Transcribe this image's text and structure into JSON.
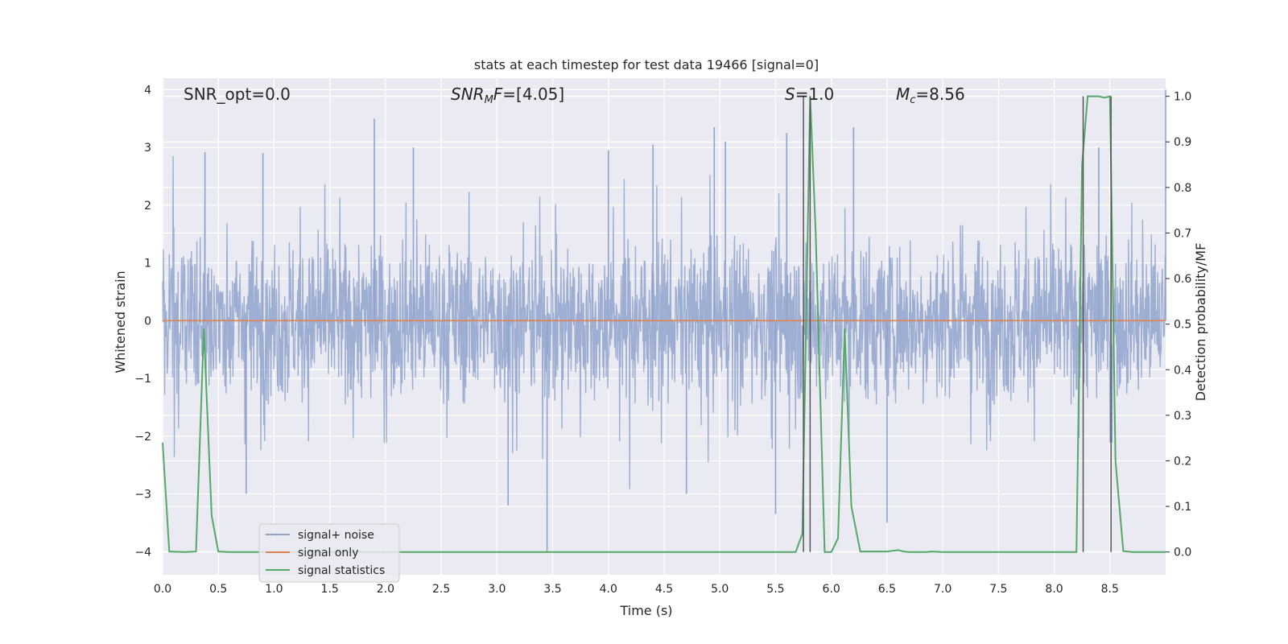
{
  "chart_data": {
    "type": "line",
    "title": "stats at each timestep for test data 19466 [signal=0]",
    "xlabel": "Time (s)",
    "ylabel_left": "Whitened strain",
    "ylabel_right": "Detection probability/MF",
    "xlim": [
      0.0,
      9.0
    ],
    "ylim_left": [
      -4.4,
      4.2
    ],
    "ylim_right": [
      -0.05,
      1.04
    ],
    "x_ticks": [
      "0.0",
      "0.5",
      "1.0",
      "1.5",
      "2.0",
      "2.5",
      "3.0",
      "3.5",
      "4.0",
      "4.5",
      "5.0",
      "5.5",
      "6.0",
      "6.5",
      "7.0",
      "7.5",
      "8.0",
      "8.5"
    ],
    "y_left_ticks": [
      "−4",
      "−3",
      "−2",
      "−1",
      "0",
      "1",
      "2",
      "3",
      "4"
    ],
    "y_right_ticks": [
      "0.0",
      "0.1",
      "0.2",
      "0.3",
      "0.4",
      "0.5",
      "0.6",
      "0.7",
      "0.8",
      "0.9",
      "1.0"
    ],
    "grid": true,
    "legend_position": "lower-left",
    "annotations": {
      "snr_opt": "SNR_opt=0.0",
      "snr_mf_base": "SNR",
      "snr_mf_sub": "M",
      "snr_mf_rest": "F=[4.05]",
      "s_var": "S",
      "s_rest": "=1.0",
      "mc_var": "M",
      "mc_sub": "c",
      "mc_rest": "=8.56"
    },
    "series": [
      {
        "name": "signal+ noise",
        "color": "#8fa3cc",
        "noise_envelope": {
          "typical_range": [
            -1.6,
            1.5
          ],
          "extreme_peaks": [
            {
              "x": 0.38,
              "y": 2.92
            },
            {
              "x": 0.9,
              "y": 2.9
            },
            {
              "x": 1.9,
              "y": 3.5
            },
            {
              "x": 2.25,
              "y": 3.0
            },
            {
              "x": 4.0,
              "y": 2.95
            },
            {
              "x": 4.4,
              "y": 3.05
            },
            {
              "x": 4.95,
              "y": 3.35
            },
            {
              "x": 5.05,
              "y": 3.1
            },
            {
              "x": 5.6,
              "y": 3.25
            },
            {
              "x": 6.2,
              "y": 3.35
            },
            {
              "x": 8.4,
              "y": 3.0
            },
            {
              "x": 9.0,
              "y": 4.0
            }
          ],
          "extreme_troughs": [
            {
              "x": 3.45,
              "y": -4.0
            },
            {
              "x": 3.1,
              "y": -3.2
            },
            {
              "x": 5.5,
              "y": -3.35
            },
            {
              "x": 6.5,
              "y": -3.5
            },
            {
              "x": 4.7,
              "y": -3.0
            },
            {
              "x": 0.75,
              "y": -3.0
            }
          ]
        }
      },
      {
        "name": "signal only",
        "color": "#dd8452",
        "x": [
          0.0,
          9.0
        ],
        "y": [
          0.0,
          0.0
        ]
      },
      {
        "name": "signal statistics",
        "color": "#55a868",
        "axis": "right",
        "x": [
          0.0,
          0.06,
          0.2,
          0.3,
          0.37,
          0.44,
          0.5,
          0.6,
          5.68,
          5.74,
          5.81,
          5.86,
          5.94,
          6.0,
          6.06,
          6.12,
          6.18,
          6.26,
          6.5,
          6.6,
          6.65,
          6.7,
          6.8,
          6.85,
          6.9,
          7.0,
          8.2,
          8.25,
          8.3,
          8.4,
          8.45,
          8.5,
          8.55,
          8.62,
          8.7,
          9.0
        ],
        "y": [
          0.24,
          0.001,
          0.0,
          0.001,
          0.49,
          0.08,
          0.001,
          0.0,
          0.0,
          0.04,
          1.0,
          0.7,
          0.0,
          0.0,
          0.03,
          0.49,
          0.1,
          0.001,
          0.001,
          0.004,
          0.001,
          0.0,
          0.0,
          0.0,
          0.001,
          0.0,
          0.0,
          0.85,
          1.0,
          1.0,
          0.997,
          1.0,
          0.2,
          0.002,
          0.0,
          0.0
        ]
      }
    ],
    "vertical_markers": [
      5.75,
      5.81,
      8.26,
      8.51
    ]
  }
}
